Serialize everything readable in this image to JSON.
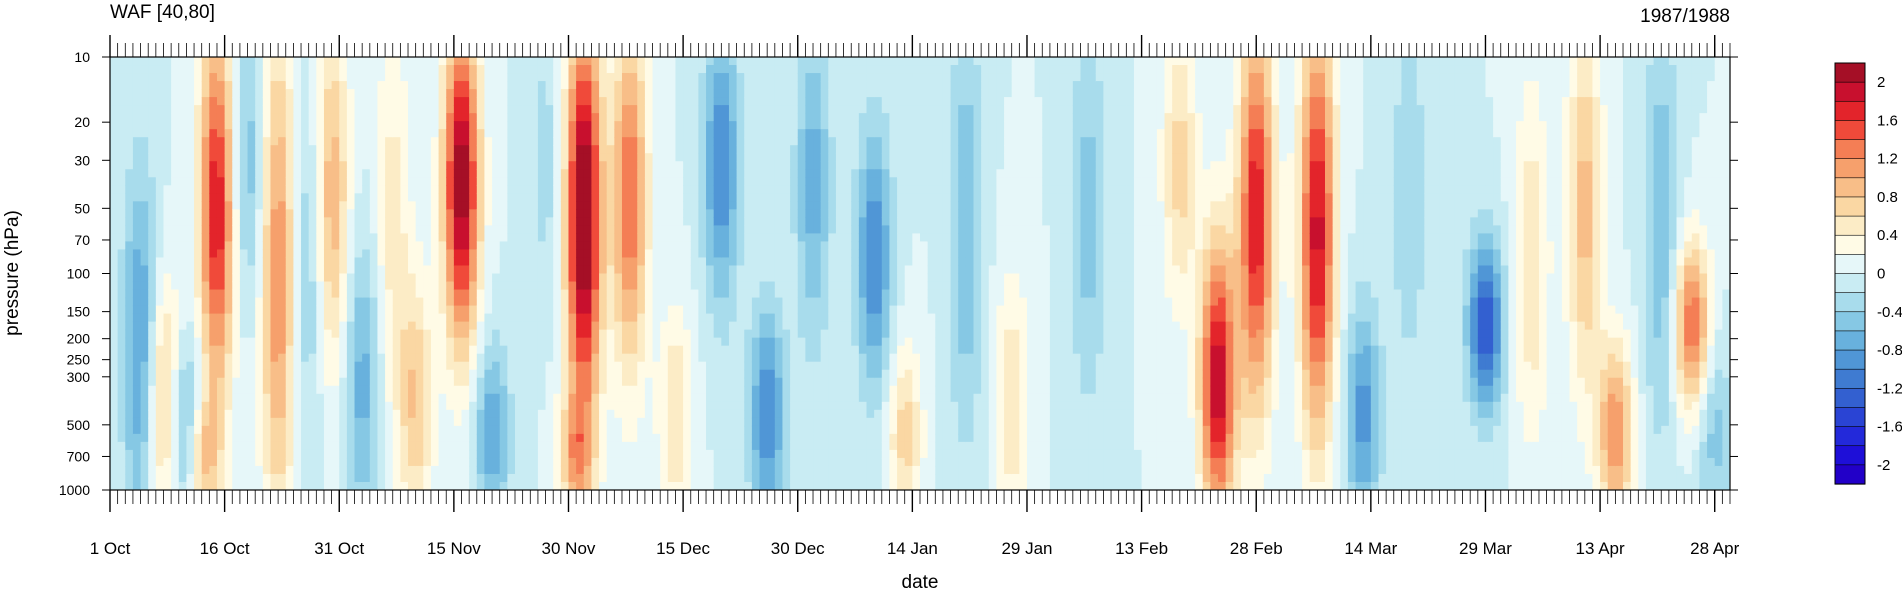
{
  "chart_data": {
    "type": "heatmap",
    "title_left": "WAF [40,80]",
    "title_right": "1987/1988",
    "xlabel": "date",
    "ylabel": "pressure (hPa)",
    "x_tick_labels": [
      "1 Oct",
      "16 Oct",
      "31 Oct",
      "15 Nov",
      "30 Nov",
      "15 Dec",
      "30 Dec",
      "14 Jan",
      "29 Jan",
      "13 Feb",
      "28 Feb",
      "14 Mar",
      "29 Mar",
      "13 Apr",
      "28 Apr"
    ],
    "x_tick_days": [
      0,
      15,
      30,
      45,
      60,
      75,
      90,
      105,
      120,
      135,
      150,
      165,
      180,
      195,
      210
    ],
    "xlim_days": [
      0,
      212
    ],
    "y_scale": "log",
    "ylim": [
      1000,
      10
    ],
    "y_ticks": [
      10,
      20,
      30,
      50,
      70,
      100,
      150,
      200,
      250,
      300,
      500,
      700,
      1000
    ],
    "y_tick_labels": [
      "10",
      "20",
      "30",
      "50",
      "70",
      "100",
      "150",
      "200",
      "250",
      "300",
      "500",
      "700",
      "1000"
    ],
    "colorbar": {
      "min": -2.2,
      "max": 2.2,
      "step": 0.2,
      "tick_labels": [
        "2",
        "1.6",
        "1.2",
        "0.8",
        "0.4",
        "0",
        "-0.4",
        "-0.8",
        "-1.2",
        "-1.6",
        "-2"
      ],
      "colors_top_to_bottom": [
        "#a50f26",
        "#c8102e",
        "#e3242b",
        "#f04a3a",
        "#f47e55",
        "#f6a06c",
        "#f8be88",
        "#fad7a3",
        "#fcecc6",
        "#fffbe6",
        "#e6f7f9",
        "#c9ecf3",
        "#a8dcec",
        "#86c8e4",
        "#68b1dd",
        "#5096d6",
        "#3f7bd1",
        "#3360d0",
        "#2a44d4",
        "#2329da",
        "#1e0fd8",
        "#2200c8"
      ]
    },
    "features": [
      {
        "day": 4,
        "p_top": 50,
        "p_bot": 1000,
        "amp": -0.9
      },
      {
        "day": 7,
        "p_top": 150,
        "p_bot": 1000,
        "amp": 0.9
      },
      {
        "day": 10,
        "p_top": 300,
        "p_bot": 1000,
        "amp": -0.9
      },
      {
        "day": 14,
        "p_top": 10,
        "p_bot": 250,
        "amp": 1.8
      },
      {
        "day": 12,
        "p_top": 500,
        "p_bot": 1000,
        "amp": 1.0
      },
      {
        "day": 18,
        "p_top": 10,
        "p_bot": 100,
        "amp": -0.6
      },
      {
        "day": 22,
        "p_top": 10,
        "p_bot": 1000,
        "amp": 1.2
      },
      {
        "day": 26,
        "p_top": 20,
        "p_bot": 400,
        "amp": -0.5
      },
      {
        "day": 29,
        "p_top": 10,
        "p_bot": 200,
        "amp": 1.0
      },
      {
        "day": 33,
        "p_top": 100,
        "p_bot": 1000,
        "amp": -0.7
      },
      {
        "day": 37,
        "p_top": 10,
        "p_bot": 300,
        "amp": 0.5
      },
      {
        "day": 40,
        "p_top": 150,
        "p_bot": 1000,
        "amp": 0.8
      },
      {
        "day": 46,
        "p_top": 10,
        "p_bot": 150,
        "amp": 2.2
      },
      {
        "day": 50,
        "p_top": 300,
        "p_bot": 1000,
        "amp": -0.8
      },
      {
        "day": 57,
        "p_top": 10,
        "p_bot": 100,
        "amp": -0.3
      },
      {
        "day": 62,
        "p_top": 10,
        "p_bot": 300,
        "amp": 2.4
      },
      {
        "day": 61,
        "p_top": 500,
        "p_bot": 1000,
        "amp": 0.9
      },
      {
        "day": 68,
        "p_top": 10,
        "p_bot": 200,
        "amp": 1.4
      },
      {
        "day": 74,
        "p_top": 200,
        "p_bot": 1000,
        "amp": 0.6
      },
      {
        "day": 80,
        "p_top": 10,
        "p_bot": 100,
        "amp": -1.0
      },
      {
        "day": 86,
        "p_top": 200,
        "p_bot": 1000,
        "amp": -1.0
      },
      {
        "day": 92,
        "p_top": 10,
        "p_bot": 150,
        "amp": -0.7
      },
      {
        "day": 100,
        "p_top": 30,
        "p_bot": 250,
        "amp": -1.0
      },
      {
        "day": 104,
        "p_top": 300,
        "p_bot": 1000,
        "amp": 0.7
      },
      {
        "day": 112,
        "p_top": 10,
        "p_bot": 400,
        "amp": -0.6
      },
      {
        "day": 118,
        "p_top": 150,
        "p_bot": 1000,
        "amp": 0.6
      },
      {
        "day": 128,
        "p_top": 10,
        "p_bot": 300,
        "amp": -0.5
      },
      {
        "day": 140,
        "p_top": 10,
        "p_bot": 100,
        "amp": 0.7
      },
      {
        "day": 145,
        "p_top": 100,
        "p_bot": 1000,
        "amp": 2.0
      },
      {
        "day": 150,
        "p_top": 10,
        "p_bot": 300,
        "amp": 1.8
      },
      {
        "day": 158,
        "p_top": 10,
        "p_bot": 400,
        "amp": 1.9
      },
      {
        "day": 164,
        "p_top": 200,
        "p_bot": 1000,
        "amp": -0.9
      },
      {
        "day": 170,
        "p_top": 10,
        "p_bot": 200,
        "amp": -0.4
      },
      {
        "day": 180,
        "p_top": 100,
        "p_bot": 300,
        "amp": -1.4
      },
      {
        "day": 186,
        "p_top": 20,
        "p_bot": 400,
        "amp": 0.6
      },
      {
        "day": 193,
        "p_top": 10,
        "p_bot": 250,
        "amp": 0.9
      },
      {
        "day": 197,
        "p_top": 300,
        "p_bot": 1000,
        "amp": 1.2
      },
      {
        "day": 203,
        "p_top": 10,
        "p_bot": 400,
        "amp": -0.6
      },
      {
        "day": 207,
        "p_top": 100,
        "p_bot": 300,
        "amp": 1.4
      },
      {
        "day": 210,
        "p_top": 300,
        "p_bot": 1000,
        "amp": -0.5
      }
    ]
  }
}
